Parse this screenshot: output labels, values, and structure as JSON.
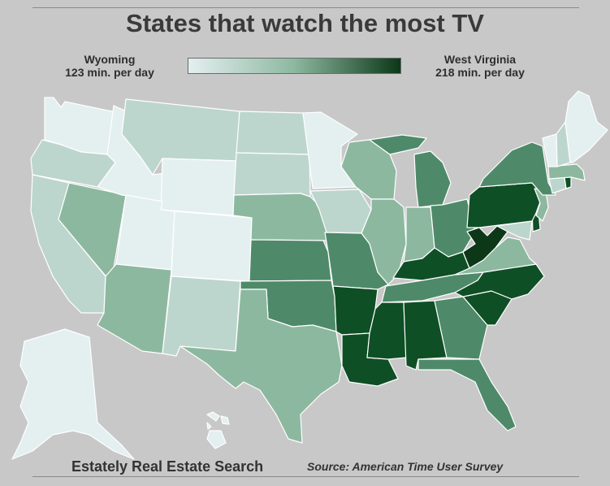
{
  "title": "States that watch the most TV",
  "legend": {
    "low_state": "Wyoming",
    "low_value": "123 min. per day",
    "high_state": "West Virginia",
    "high_value": "218 min. per day",
    "low_color": "#e4eff0",
    "high_color": "#0c3818"
  },
  "footer": {
    "brand": "Estately Real Estate Search",
    "source": "Source:  American Time User Survey"
  },
  "colors": {
    "background": "#c8c8c8",
    "level_1": "#e4eff0",
    "level_2": "#bdd6cd",
    "level_3": "#8db8a0",
    "level_4": "#4e8a69",
    "level_5": "#0f4f25",
    "level_6": "#0c3818"
  },
  "states": [
    {
      "name": "Washington",
      "level": 1
    },
    {
      "name": "Oregon",
      "level": 2
    },
    {
      "name": "California",
      "level": 2
    },
    {
      "name": "Nevada",
      "level": 3
    },
    {
      "name": "Idaho",
      "level": 1
    },
    {
      "name": "Montana",
      "level": 2
    },
    {
      "name": "Wyoming",
      "level": 1
    },
    {
      "name": "Utah",
      "level": 1
    },
    {
      "name": "Colorado",
      "level": 1
    },
    {
      "name": "Arizona",
      "level": 3
    },
    {
      "name": "New Mexico",
      "level": 2
    },
    {
      "name": "North Dakota",
      "level": 2
    },
    {
      "name": "South Dakota",
      "level": 2
    },
    {
      "name": "Nebraska",
      "level": 3
    },
    {
      "name": "Kansas",
      "level": 4
    },
    {
      "name": "Oklahoma",
      "level": 4
    },
    {
      "name": "Texas",
      "level": 3
    },
    {
      "name": "Minnesota",
      "level": 1
    },
    {
      "name": "Iowa",
      "level": 2
    },
    {
      "name": "Missouri",
      "level": 4
    },
    {
      "name": "Arkansas",
      "level": 5
    },
    {
      "name": "Louisiana",
      "level": 5
    },
    {
      "name": "Wisconsin",
      "level": 3
    },
    {
      "name": "Illinois",
      "level": 3
    },
    {
      "name": "Michigan",
      "level": 4
    },
    {
      "name": "Indiana",
      "level": 3
    },
    {
      "name": "Ohio",
      "level": 4
    },
    {
      "name": "Kentucky",
      "level": 5
    },
    {
      "name": "Tennessee",
      "level": 4
    },
    {
      "name": "Mississippi",
      "level": 5
    },
    {
      "name": "Alabama",
      "level": 5
    },
    {
      "name": "Georgia",
      "level": 4
    },
    {
      "name": "Florida",
      "level": 4
    },
    {
      "name": "South Carolina",
      "level": 5
    },
    {
      "name": "North Carolina",
      "level": 5
    },
    {
      "name": "Virginia",
      "level": 3
    },
    {
      "name": "West Virginia",
      "level": 6
    },
    {
      "name": "Maryland",
      "level": 2
    },
    {
      "name": "Delaware",
      "level": 5
    },
    {
      "name": "Pennsylvania",
      "level": 5
    },
    {
      "name": "New Jersey",
      "level": 3
    },
    {
      "name": "New York",
      "level": 4
    },
    {
      "name": "Connecticut",
      "level": 2
    },
    {
      "name": "Rhode Island",
      "level": 5
    },
    {
      "name": "Massachusetts",
      "level": 3
    },
    {
      "name": "Vermont",
      "level": 1
    },
    {
      "name": "New Hampshire",
      "level": 2
    },
    {
      "name": "Maine",
      "level": 1
    },
    {
      "name": "Alaska",
      "level": 1
    },
    {
      "name": "Hawaii",
      "level": 1
    }
  ]
}
